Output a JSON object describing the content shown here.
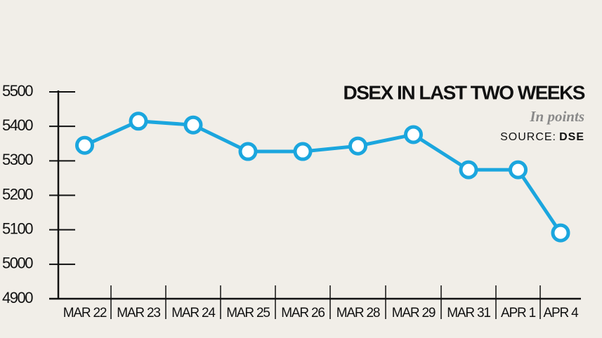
{
  "chart_data": {
    "type": "line",
    "title": "DSEX IN LAST TWO WEEKS",
    "subtitle": "In points",
    "source_label": "SOURCE:",
    "source": "DSE",
    "categories": [
      "MAR 22",
      "MAR 23",
      "MAR 24",
      "MAR 25",
      "MAR 26",
      "MAR 28",
      "MAR 29",
      "MAR 31",
      "APR 1",
      "APR 4"
    ],
    "values": [
      5345,
      5415,
      5404,
      5327,
      5327,
      5343,
      5376,
      5274,
      5274,
      5091
    ],
    "color": "#1ba6de",
    "ylim": [
      4900,
      5500
    ],
    "yticks": [
      4900,
      5000,
      5100,
      5200,
      5300,
      5400,
      5500
    ]
  }
}
